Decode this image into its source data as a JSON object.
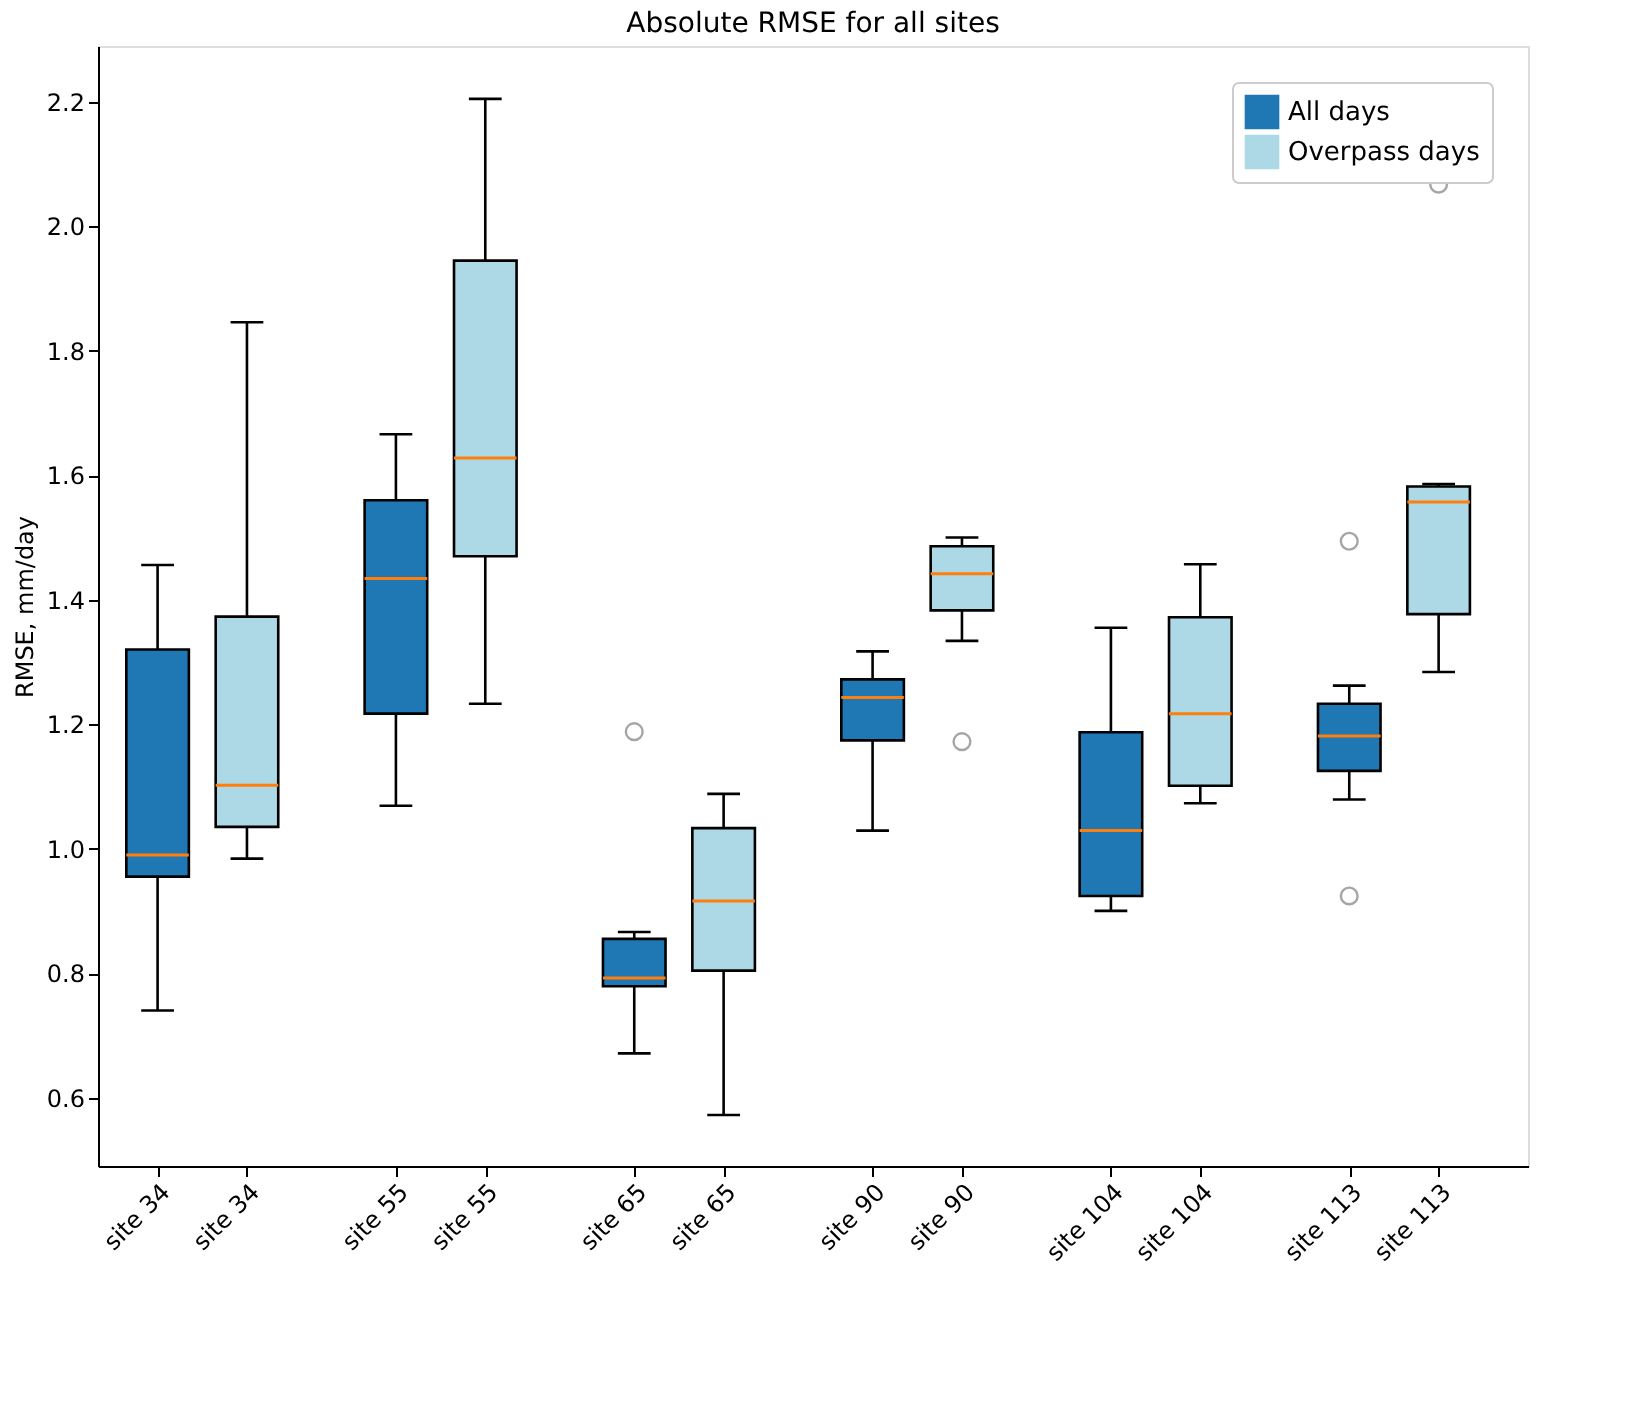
{
  "chart_data": {
    "type": "box",
    "title": "Absolute RMSE for all sites",
    "ylabel": "RMSE, mm/day",
    "categories": [
      "site 34",
      "site 55",
      "site 65",
      "site 90",
      "site 104",
      "site 113"
    ],
    "series": [
      {
        "name": "All days",
        "color": "#1f77b4",
        "boxes": [
          {
            "low": 0.74,
            "q1": 0.955,
            "median": 0.99,
            "q3": 1.32,
            "high": 1.456
          },
          {
            "low": 1.069,
            "q1": 1.217,
            "median": 1.434,
            "q3": 1.56,
            "high": 1.666
          },
          {
            "low": 0.671,
            "q1": 0.779,
            "median": 0.792,
            "q3": 0.855,
            "high": 0.866,
            "outliers": [
              1.188
            ]
          },
          {
            "low": 1.029,
            "q1": 1.174,
            "median": 1.243,
            "q3": 1.272,
            "high": 1.317
          },
          {
            "low": 0.9,
            "q1": 0.924,
            "median": 1.029,
            "q3": 1.187,
            "high": 1.355
          },
          {
            "low": 1.079,
            "q1": 1.125,
            "median": 1.181,
            "q3": 1.233,
            "high": 1.262,
            "outliers": [
              1.494,
              0.924
            ]
          }
        ]
      },
      {
        "name": "Overpass days",
        "color": "#add8e6",
        "boxes": [
          {
            "low": 0.984,
            "q1": 1.035,
            "median": 1.102,
            "q3": 1.373,
            "high": 1.846
          },
          {
            "low": 1.233,
            "q1": 1.47,
            "median": 1.628,
            "q3": 1.945,
            "high": 2.205
          },
          {
            "low": 0.572,
            "q1": 0.804,
            "median": 0.916,
            "q3": 1.033,
            "high": 1.088
          },
          {
            "low": 1.334,
            "q1": 1.383,
            "median": 1.442,
            "q3": 1.486,
            "high": 1.5,
            "outliers": [
              1.172
            ]
          },
          {
            "low": 1.073,
            "q1": 1.101,
            "median": 1.217,
            "q3": 1.372,
            "high": 1.457
          },
          {
            "low": 1.284,
            "q1": 1.377,
            "median": 1.557,
            "q3": 1.582,
            "high": 1.586,
            "outliers": [
              2.068
            ]
          }
        ]
      }
    ],
    "ylim": [
      0.49,
      2.29
    ],
    "yticks": [
      0.6,
      0.8,
      {
        "value": 1.0,
        "label": "1.0"
      },
      1.2,
      1.4,
      1.6,
      1.8,
      {
        "value": 2.0,
        "label": "2.0"
      },
      2.2
    ],
    "grid": false,
    "legend": "top right"
  }
}
